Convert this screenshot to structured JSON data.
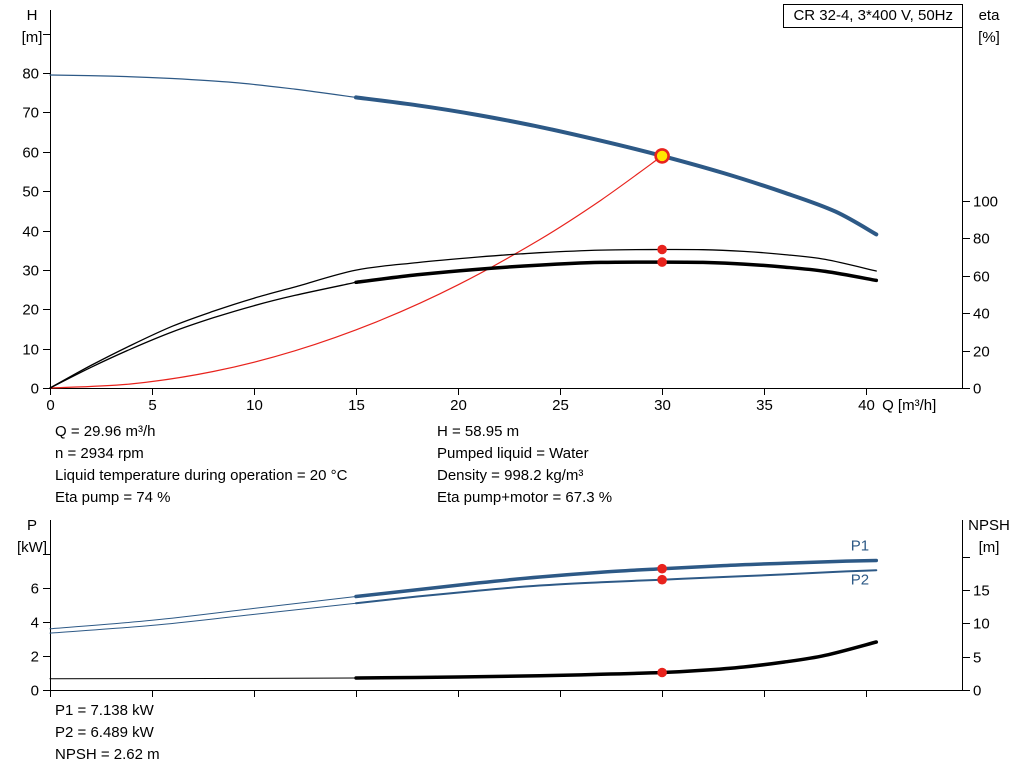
{
  "title_box": "CR 32-4, 3*400 V, 50Hz",
  "operating_point_info": {
    "left": [
      "Q = 29.96 m³/h",
      "n = 2934 rpm",
      "Liquid temperature during operation = 20 °C",
      "Eta pump = 74 %"
    ],
    "right": [
      "H = 58.95 m",
      "Pumped liquid = Water",
      "Density = 998.2 kg/m³",
      "Eta pump+motor = 67.3 %"
    ]
  },
  "power_info": [
    "P1 = 7.138 kW",
    "P2 = 6.489 kW",
    "NPSH = 2.62 m"
  ],
  "colors": {
    "blue": "#2d5986",
    "black": "#000000",
    "red": "#e8231d",
    "yellow": "#ffe600",
    "axis": "#000000",
    "text": "#000000"
  },
  "chart_data": [
    {
      "name": "qh-eta-chart",
      "type": "line",
      "xlabel": "Q [m³/h]",
      "xlim": [
        0,
        44.7
      ],
      "x_ticks": [
        0,
        5,
        10,
        15,
        20,
        25,
        30,
        35,
        40
      ],
      "show_x_tick_labels": true,
      "left_axis": {
        "label": [
          "H",
          "[m]"
        ],
        "lim": [
          0,
          96
        ],
        "ticks": [
          0,
          10,
          20,
          30,
          40,
          50,
          60,
          70,
          80
        ],
        "extra_ticks": [
          90
        ]
      },
      "right_axis": {
        "label": [
          "eta",
          "[%]"
        ],
        "lim": [
          0,
          202
        ],
        "ticks": [
          0,
          20,
          40,
          60,
          80,
          100
        ],
        "extra_ticks": []
      },
      "series": [
        {
          "name": "qh-curve-low-flow",
          "axis": "left",
          "color_key": "blue",
          "width": 1.2,
          "points": [
            [
              0,
              79.5
            ],
            [
              3,
              79.2
            ],
            [
              6,
              78.6
            ],
            [
              9,
              77.6
            ],
            [
              12,
              75.9
            ],
            [
              15,
              73.8
            ]
          ]
        },
        {
          "name": "qh-curve-main",
          "axis": "left",
          "color_key": "blue",
          "width": 4,
          "points": [
            [
              15,
              73.8
            ],
            [
              18,
              71.8
            ],
            [
              21,
              69.3
            ],
            [
              24,
              66.3
            ],
            [
              27,
              62.8
            ],
            [
              30,
              58.95
            ],
            [
              33,
              54.6
            ],
            [
              36,
              49.6
            ],
            [
              38.5,
              44.8
            ],
            [
              40.5,
              39
            ]
          ]
        },
        {
          "name": "system-curve",
          "axis": "left",
          "color_key": "red",
          "width": 1.2,
          "points": [
            [
              0,
              0
            ],
            [
              4,
              1.05
            ],
            [
              8,
              4.2
            ],
            [
              12,
              9.45
            ],
            [
              16,
              16.8
            ],
            [
              20,
              26.2
            ],
            [
              24,
              37.7
            ],
            [
              27,
              47.7
            ],
            [
              30,
              58.95
            ]
          ]
        },
        {
          "name": "eta-pump-curve",
          "axis": "right",
          "color_key": "black",
          "width": 1.3,
          "points": [
            [
              0,
              0
            ],
            [
              2,
              12
            ],
            [
              4,
              23
            ],
            [
              6,
              33
            ],
            [
              8,
              41
            ],
            [
              10,
              48
            ],
            [
              12,
              54
            ],
            [
              15,
              63
            ],
            [
              18,
              67
            ],
            [
              21,
              70
            ],
            [
              24,
              72.3
            ],
            [
              27,
              73.7
            ],
            [
              30,
              74
            ],
            [
              32,
              73.9
            ],
            [
              34,
              73
            ],
            [
              36,
              71.3
            ],
            [
              38,
              68.7
            ],
            [
              40.5,
              62.5
            ]
          ]
        },
        {
          "name": "eta-pump-motor-curve-low-flow",
          "axis": "right",
          "color_key": "black",
          "width": 1.3,
          "points": [
            [
              0,
              0
            ],
            [
              2,
              11
            ],
            [
              4,
              21
            ],
            [
              6,
              30
            ],
            [
              8,
              37.5
            ],
            [
              10,
              44
            ],
            [
              12,
              49.5
            ],
            [
              15,
              56.5
            ]
          ]
        },
        {
          "name": "eta-pump-motor-curve",
          "axis": "right",
          "color_key": "black",
          "width": 3.5,
          "points": [
            [
              15,
              56.5
            ],
            [
              18,
              60.5
            ],
            [
              21,
              63.5
            ],
            [
              24,
              65.7
            ],
            [
              27,
              67.1
            ],
            [
              30,
              67.3
            ],
            [
              32,
              67.1
            ],
            [
              34,
              66.2
            ],
            [
              36,
              64.6
            ],
            [
              38,
              62.3
            ],
            [
              40.5,
              57.5
            ]
          ]
        }
      ],
      "markers": [
        {
          "name": "duty-point",
          "axis": "left",
          "x": 30,
          "y": 58.95,
          "r": 6.5,
          "fill_key": "yellow",
          "stroke_key": "red",
          "stroke_width": 2.6
        },
        {
          "name": "eta-pump-point",
          "axis": "right",
          "x": 30,
          "y": 74,
          "r": 4.8,
          "fill_key": "red"
        },
        {
          "name": "eta-pump-motor-point",
          "axis": "right",
          "x": 30,
          "y": 67.3,
          "r": 4.8,
          "fill_key": "red"
        }
      ],
      "annotations": []
    },
    {
      "name": "power-npsh-chart",
      "type": "line",
      "xlabel": "",
      "xlim": [
        0,
        44.7
      ],
      "x_ticks": [
        0,
        5,
        10,
        15,
        20,
        25,
        30,
        35,
        40
      ],
      "show_x_tick_labels": false,
      "left_axis": {
        "label": [
          "P",
          "[kW]"
        ],
        "lim": [
          0,
          10
        ],
        "ticks": [
          0,
          2,
          4,
          6
        ],
        "extra_ticks": [
          8
        ]
      },
      "right_axis": {
        "label": [
          "NPSH",
          "[m]"
        ],
        "lim": [
          0,
          25.5
        ],
        "ticks": [
          0,
          5,
          10,
          15
        ],
        "extra_ticks": [
          20
        ]
      },
      "series": [
        {
          "name": "p1-curve-low-flow",
          "axis": "left",
          "color_key": "blue",
          "width": 1,
          "points": [
            [
              0,
              3.6
            ],
            [
              5,
              4.1
            ],
            [
              10,
              4.8
            ],
            [
              15,
              5.5
            ]
          ]
        },
        {
          "name": "p1-curve",
          "axis": "left",
          "color_key": "blue",
          "width": 3.5,
          "points": [
            [
              15,
              5.5
            ],
            [
              18,
              5.9
            ],
            [
              21,
              6.3
            ],
            [
              24,
              6.65
            ],
            [
              27,
              6.93
            ],
            [
              30,
              7.138
            ],
            [
              33,
              7.32
            ],
            [
              36,
              7.46
            ],
            [
              38.5,
              7.56
            ],
            [
              40.5,
              7.62
            ]
          ]
        },
        {
          "name": "p2-curve-low-flow",
          "axis": "left",
          "color_key": "blue",
          "width": 1,
          "points": [
            [
              0,
              3.35
            ],
            [
              5,
              3.8
            ],
            [
              10,
              4.45
            ],
            [
              15,
              5.1
            ]
          ]
        },
        {
          "name": "p2-curve",
          "axis": "left",
          "color_key": "blue",
          "width": 2,
          "points": [
            [
              15,
              5.1
            ],
            [
              18,
              5.5
            ],
            [
              21,
              5.85
            ],
            [
              24,
              6.15
            ],
            [
              27,
              6.34
            ],
            [
              30,
              6.489
            ],
            [
              33,
              6.65
            ],
            [
              36,
              6.8
            ],
            [
              38.5,
              6.95
            ],
            [
              40.5,
              7.05
            ]
          ]
        },
        {
          "name": "npsh-curve-low-flow",
          "axis": "right",
          "color_key": "black",
          "width": 1,
          "points": [
            [
              0,
              1.7
            ],
            [
              8,
              1.73
            ],
            [
              15,
              1.8
            ]
          ]
        },
        {
          "name": "npsh-curve",
          "axis": "right",
          "color_key": "black",
          "width": 3.5,
          "points": [
            [
              15,
              1.8
            ],
            [
              20,
              1.95
            ],
            [
              24,
              2.15
            ],
            [
              27,
              2.35
            ],
            [
              30,
              2.62
            ],
            [
              32,
              2.95
            ],
            [
              34,
              3.45
            ],
            [
              36,
              4.2
            ],
            [
              38,
              5.2
            ],
            [
              40.5,
              7.2
            ]
          ]
        }
      ],
      "markers": [
        {
          "name": "p1-point",
          "axis": "left",
          "x": 30,
          "y": 7.138,
          "r": 4.8,
          "fill_key": "red"
        },
        {
          "name": "p2-point",
          "axis": "left",
          "x": 30,
          "y": 6.489,
          "r": 4.8,
          "fill_key": "red"
        },
        {
          "name": "npsh-point",
          "axis": "right",
          "x": 30,
          "y": 2.62,
          "r": 4.8,
          "fill_key": "red"
        }
      ],
      "annotations": [
        {
          "name": "p1-curve-label",
          "text": "P1",
          "axis": "left",
          "x": 39.7,
          "y": 8.2,
          "color_key": "blue"
        },
        {
          "name": "p2-curve-label",
          "text": "P2",
          "axis": "left",
          "x": 39.7,
          "y": 6.2,
          "color_key": "blue"
        }
      ]
    }
  ]
}
